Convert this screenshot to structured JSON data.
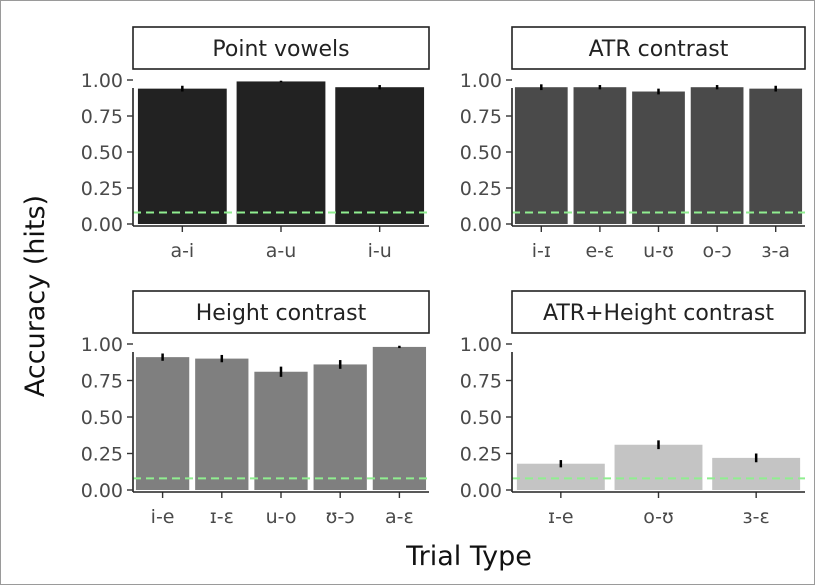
{
  "figure": {
    "ylabel": "Accuracy (hits)",
    "xlabel": "Trial Type",
    "chance_line_color": "#90ee90"
  },
  "chart_data": [
    {
      "type": "bar",
      "title": "Point vowels",
      "categories": [
        "a-i",
        "a-u",
        "i-u"
      ],
      "values": [
        0.94,
        0.99,
        0.95
      ],
      "errors": [
        0.02,
        0.005,
        0.015
      ],
      "ylim": [
        0,
        1
      ],
      "yticks": [
        "0.00",
        "0.25",
        "0.50",
        "0.75",
        "1.00"
      ],
      "chance": 0.08,
      "color": "#222222"
    },
    {
      "type": "bar",
      "title": "ATR contrast",
      "categories": [
        "i-ɪ",
        "e-ɛ",
        "u-ʊ",
        "o-ɔ",
        "ɜ-a"
      ],
      "values": [
        0.95,
        0.95,
        0.92,
        0.95,
        0.94
      ],
      "errors": [
        0.02,
        0.015,
        0.02,
        0.015,
        0.02
      ],
      "ylim": [
        0,
        1
      ],
      "yticks": [
        "0.00",
        "0.25",
        "0.50",
        "0.75",
        "1.00"
      ],
      "chance": 0.08,
      "color": "#4a4a4a"
    },
    {
      "type": "bar",
      "title": "Height contrast",
      "categories": [
        "i-e",
        "ɪ-ɛ",
        "u-o",
        "ʊ-ɔ",
        "a-ɛ"
      ],
      "values": [
        0.91,
        0.9,
        0.81,
        0.86,
        0.98
      ],
      "errors": [
        0.025,
        0.025,
        0.035,
        0.03,
        0.008
      ],
      "ylim": [
        0,
        1
      ],
      "yticks": [
        "0.00",
        "0.25",
        "0.50",
        "0.75",
        "1.00"
      ],
      "chance": 0.08,
      "color": "#7f7f7f"
    },
    {
      "type": "bar",
      "title": "ATR+Height contrast",
      "categories": [
        "ɪ-e",
        "o-ʊ",
        "ɜ-ɛ"
      ],
      "values": [
        0.18,
        0.31,
        0.22
      ],
      "errors": [
        0.025,
        0.03,
        0.03
      ],
      "ylim": [
        0,
        1
      ],
      "yticks": [
        "0.00",
        "0.25",
        "0.50",
        "0.75",
        "1.00"
      ],
      "chance": 0.08,
      "color": "#c4c4c4"
    }
  ]
}
